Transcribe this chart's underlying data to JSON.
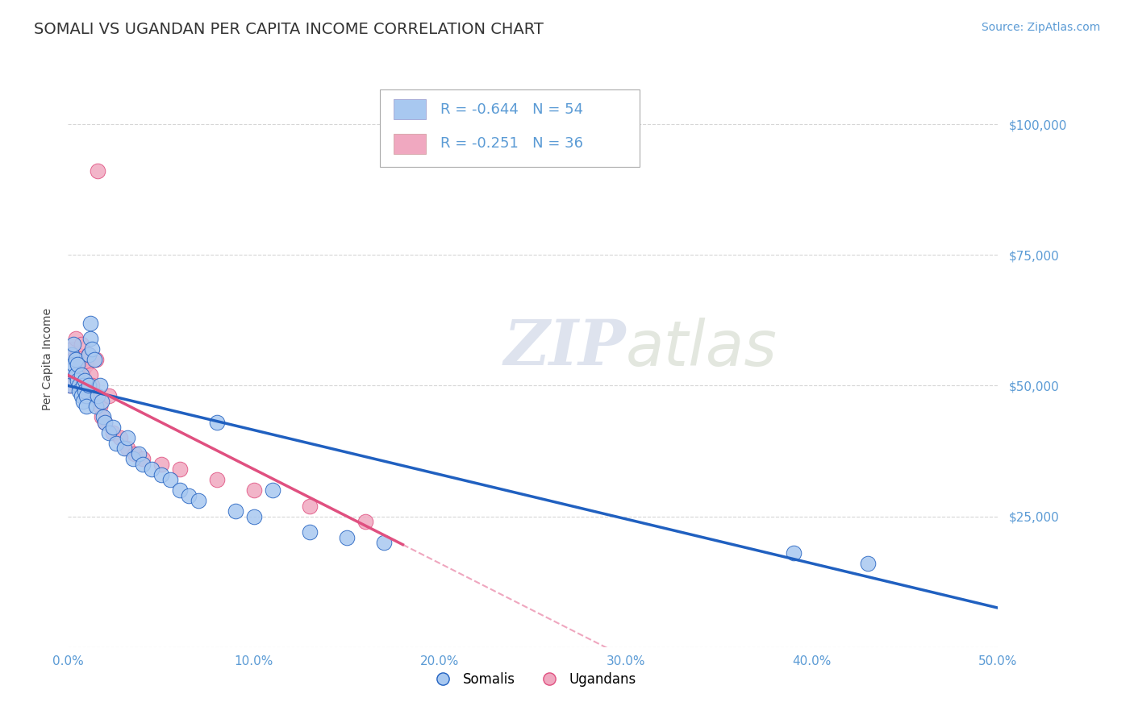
{
  "title": "SOMALI VS UGANDAN PER CAPITA INCOME CORRELATION CHART",
  "source": "Source: ZipAtlas.com",
  "ylabel": "Per Capita Income",
  "xlim": [
    0.0,
    0.5
  ],
  "ylim": [
    0,
    110000
  ],
  "yticks": [
    0,
    25000,
    50000,
    75000,
    100000
  ],
  "ytick_labels": [
    "",
    "$25,000",
    "$50,000",
    "$75,000",
    "$100,000"
  ],
  "xticks": [
    0.0,
    0.1,
    0.2,
    0.3,
    0.4,
    0.5
  ],
  "xtick_labels": [
    "0.0%",
    "10.0%",
    "20.0%",
    "30.0%",
    "40.0%",
    "50.0%"
  ],
  "somali_x": [
    0.001,
    0.002,
    0.002,
    0.003,
    0.003,
    0.004,
    0.004,
    0.005,
    0.005,
    0.006,
    0.006,
    0.007,
    0.007,
    0.008,
    0.008,
    0.009,
    0.009,
    0.01,
    0.01,
    0.011,
    0.011,
    0.012,
    0.012,
    0.013,
    0.014,
    0.015,
    0.016,
    0.017,
    0.018,
    0.019,
    0.02,
    0.022,
    0.024,
    0.026,
    0.03,
    0.032,
    0.035,
    0.038,
    0.04,
    0.045,
    0.05,
    0.055,
    0.06,
    0.065,
    0.07,
    0.08,
    0.09,
    0.1,
    0.11,
    0.13,
    0.15,
    0.17,
    0.39,
    0.43
  ],
  "somali_y": [
    50000,
    53000,
    56000,
    54000,
    58000,
    52000,
    55000,
    51000,
    54000,
    50000,
    49000,
    52000,
    48000,
    50000,
    47000,
    51000,
    49000,
    48000,
    46000,
    50000,
    56000,
    59000,
    62000,
    57000,
    55000,
    46000,
    48000,
    50000,
    47000,
    44000,
    43000,
    41000,
    42000,
    39000,
    38000,
    40000,
    36000,
    37000,
    35000,
    34000,
    33000,
    32000,
    30000,
    29000,
    28000,
    43000,
    26000,
    25000,
    30000,
    22000,
    21000,
    20000,
    18000,
    16000
  ],
  "ugandan_x": [
    0.001,
    0.002,
    0.002,
    0.003,
    0.003,
    0.004,
    0.005,
    0.005,
    0.006,
    0.007,
    0.007,
    0.008,
    0.009,
    0.01,
    0.01,
    0.011,
    0.012,
    0.013,
    0.014,
    0.015,
    0.016,
    0.017,
    0.018,
    0.02,
    0.022,
    0.024,
    0.028,
    0.032,
    0.036,
    0.04,
    0.05,
    0.06,
    0.08,
    0.1,
    0.13,
    0.16
  ],
  "ugandan_y": [
    50000,
    53000,
    57000,
    51000,
    55000,
    59000,
    56000,
    52000,
    54000,
    58000,
    50000,
    53000,
    51000,
    54000,
    49000,
    56000,
    52000,
    50000,
    48000,
    55000,
    91000,
    46000,
    44000,
    43000,
    48000,
    41000,
    40000,
    38000,
    37000,
    36000,
    35000,
    34000,
    32000,
    30000,
    27000,
    24000
  ],
  "somali_color": "#A8C8F0",
  "ugandan_color": "#F0A8C0",
  "somali_line_color": "#2060C0",
  "ugandan_line_color": "#E05080",
  "legend_r_somali": "R = -0.644",
  "legend_n_somali": "N = 54",
  "legend_r_ugandan": "R = -0.251",
  "legend_n_ugandan": "N = 36",
  "legend_label_somali": "Somalis",
  "legend_label_ugandan": "Ugandans",
  "grid_color": "#CCCCCC",
  "background_color": "#FFFFFF",
  "axis_color": "#5B9BD5",
  "watermark_zip": "ZIP",
  "watermark_atlas": "atlas",
  "title_fontsize": 14,
  "label_fontsize": 10,
  "tick_fontsize": 11,
  "source_fontsize": 10,
  "somali_line_intercept": 50000,
  "somali_line_slope": -85000,
  "ugandan_line_intercept": 52000,
  "ugandan_line_slope": -180000,
  "ugandan_line_xmax": 0.18
}
